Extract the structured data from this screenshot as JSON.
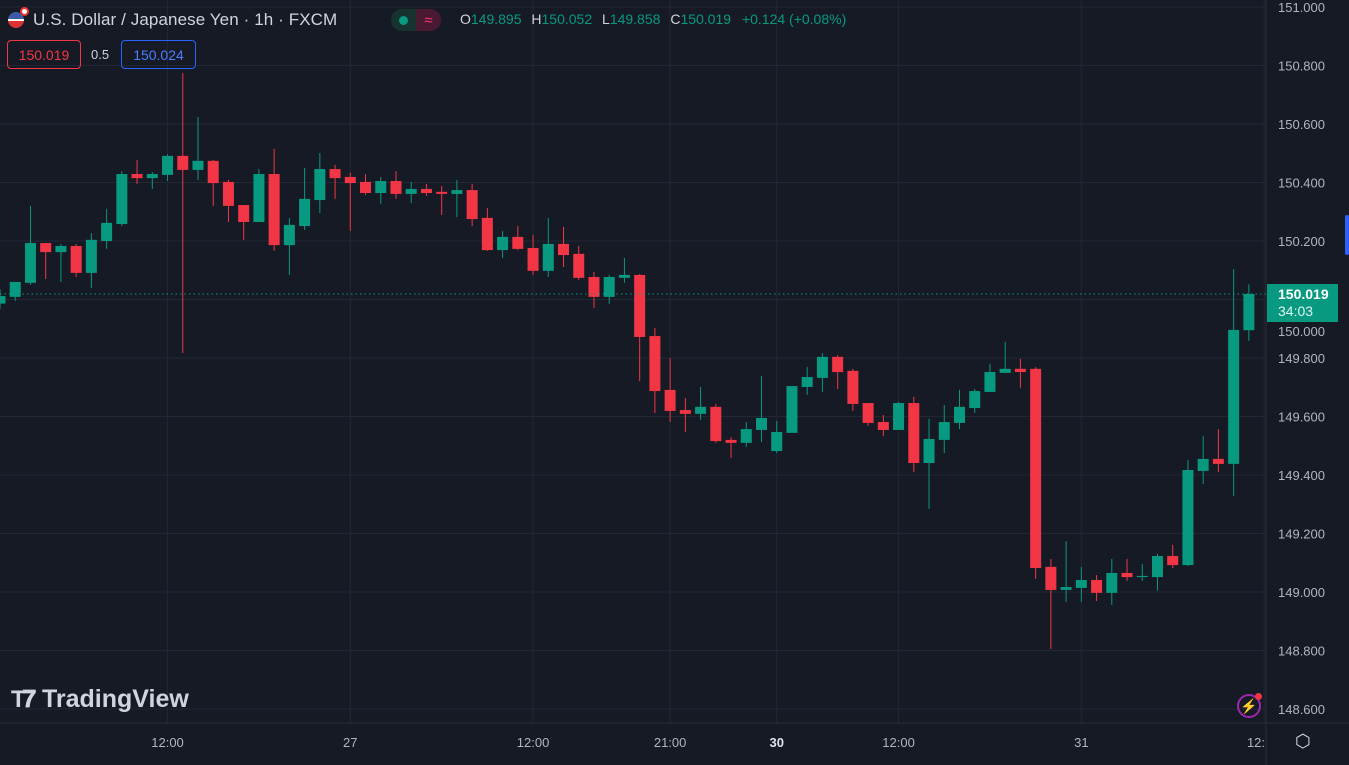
{
  "header": {
    "title": "U.S. Dollar / Japanese Yen · 1h · FXCM",
    "flag_icon": "us-jp-flag-icon",
    "status_icon": "market-open-dot-icon",
    "indicator_icon": "approx-wave-icon",
    "ohlc": {
      "o_label": "O",
      "o": "149.895",
      "h_label": "H",
      "h": "150.052",
      "l_label": "L",
      "l": "149.858",
      "c_label": "C",
      "c": "150.019",
      "change": "+0.124 (+0.08%)"
    }
  },
  "trade": {
    "sell": "150.019",
    "spread": "0.5",
    "buy": "150.024"
  },
  "current_price": {
    "price": "150.019",
    "countdown": "34:03"
  },
  "logo": "TradingView",
  "colors": {
    "up": "#089981",
    "down": "#f23645",
    "background": "#161a25",
    "grid": "#232734"
  },
  "chart_data": {
    "type": "candlestick",
    "symbol": "USDJPY",
    "interval": "1h",
    "ylim": [
      148.6,
      151.0
    ],
    "y_ticks": [
      "151.000",
      "150.800",
      "150.600",
      "150.400",
      "150.200",
      "150.000",
      "149.800",
      "149.600",
      "149.400",
      "149.200",
      "149.000",
      "148.800",
      "148.600"
    ],
    "x_ticks": [
      {
        "label": "12:00",
        "candle": 11,
        "bold": false
      },
      {
        "label": "27",
        "candle": 23,
        "bold": false
      },
      {
        "label": "12:00",
        "candle": 35,
        "bold": false
      },
      {
        "label": "21:00",
        "candle": 44,
        "bold": false
      },
      {
        "label": "30",
        "candle": 51,
        "bold": true
      },
      {
        "label": "12:00",
        "candle": 59,
        "bold": false
      },
      {
        "label": "31",
        "candle": 71,
        "bold": false
      },
      {
        "label": "12:",
        "candle": 83,
        "bold": false
      }
    ],
    "grid": true,
    "candles_ohlc": [
      [
        149.986,
        150.036,
        149.968,
        150.012
      ],
      [
        150.009,
        150.06,
        149.995,
        150.06
      ],
      [
        150.057,
        150.32,
        150.05,
        150.193
      ],
      [
        150.193,
        150.193,
        150.07,
        150.162
      ],
      [
        150.162,
        150.19,
        150.06,
        150.183
      ],
      [
        150.183,
        150.19,
        150.077,
        150.091
      ],
      [
        150.091,
        150.227,
        150.039,
        150.204
      ],
      [
        150.2,
        150.31,
        150.173,
        150.262
      ],
      [
        150.258,
        150.439,
        150.251,
        150.429
      ],
      [
        150.429,
        150.477,
        150.395,
        150.415
      ],
      [
        150.415,
        150.436,
        150.378,
        150.429
      ],
      [
        150.426,
        150.497,
        150.405,
        150.491
      ],
      [
        150.491,
        150.774,
        149.817,
        150.443
      ],
      [
        150.443,
        150.624,
        150.409,
        150.474
      ],
      [
        150.474,
        150.477,
        150.32,
        150.398
      ],
      [
        150.402,
        150.409,
        150.265,
        150.32
      ],
      [
        150.323,
        150.323,
        150.204,
        150.265
      ],
      [
        150.265,
        150.446,
        150.265,
        150.429
      ],
      [
        150.429,
        150.515,
        150.166,
        150.186
      ],
      [
        150.186,
        150.279,
        150.084,
        150.255
      ],
      [
        150.251,
        150.45,
        150.238,
        150.344
      ],
      [
        150.34,
        150.501,
        150.296,
        150.446
      ],
      [
        150.446,
        150.46,
        150.344,
        150.415
      ],
      [
        150.419,
        150.433,
        150.234,
        150.398
      ],
      [
        150.402,
        150.429,
        150.357,
        150.364
      ],
      [
        150.364,
        150.419,
        150.327,
        150.405
      ],
      [
        150.405,
        150.439,
        150.344,
        150.361
      ],
      [
        150.361,
        150.402,
        150.33,
        150.378
      ],
      [
        150.378,
        150.395,
        150.354,
        150.364
      ],
      [
        150.368,
        150.388,
        150.289,
        150.361
      ],
      [
        150.361,
        150.409,
        150.282,
        150.374
      ],
      [
        150.374,
        150.395,
        150.251,
        150.275
      ],
      [
        150.279,
        150.313,
        150.166,
        150.169
      ],
      [
        150.169,
        150.234,
        150.142,
        150.214
      ],
      [
        150.214,
        150.251,
        150.169,
        150.173
      ],
      [
        150.176,
        150.221,
        150.084,
        150.098
      ],
      [
        150.098,
        150.279,
        150.077,
        150.19
      ],
      [
        150.19,
        150.248,
        150.111,
        150.152
      ],
      [
        150.156,
        150.183,
        150.067,
        150.074
      ],
      [
        150.077,
        150.094,
        149.971,
        150.009
      ],
      [
        150.009,
        150.084,
        149.985,
        150.077
      ],
      [
        150.074,
        150.142,
        150.057,
        150.084
      ],
      [
        150.084,
        150.087,
        149.721,
        149.872
      ],
      [
        149.875,
        149.903,
        149.612,
        149.687
      ],
      [
        149.691,
        149.8,
        149.581,
        149.619
      ],
      [
        149.622,
        149.663,
        149.547,
        149.609
      ],
      [
        149.609,
        149.701,
        149.588,
        149.633
      ],
      [
        149.633,
        149.643,
        149.51,
        149.516
      ],
      [
        149.52,
        149.53,
        149.458,
        149.51
      ],
      [
        149.51,
        149.581,
        149.496,
        149.557
      ],
      [
        149.554,
        149.739,
        149.513,
        149.595
      ],
      [
        149.482,
        149.585,
        149.475,
        149.547
      ],
      [
        149.544,
        149.704,
        149.544,
        149.704
      ],
      [
        149.701,
        149.769,
        149.674,
        149.735
      ],
      [
        149.732,
        149.817,
        149.684,
        149.804
      ],
      [
        149.804,
        149.81,
        149.694,
        149.752
      ],
      [
        149.756,
        149.763,
        149.619,
        149.643
      ],
      [
        149.646,
        149.646,
        149.568,
        149.578
      ],
      [
        149.581,
        149.605,
        149.533,
        149.554
      ],
      [
        149.554,
        149.65,
        149.554,
        149.646
      ],
      [
        149.646,
        149.667,
        149.41,
        149.441
      ],
      [
        149.441,
        149.592,
        149.284,
        149.523
      ],
      [
        149.52,
        149.639,
        149.475,
        149.581
      ],
      [
        149.578,
        149.691,
        149.557,
        149.633
      ],
      [
        149.629,
        149.694,
        149.612,
        149.687
      ],
      [
        149.684,
        149.78,
        149.684,
        149.752
      ],
      [
        149.749,
        149.855,
        149.749,
        149.763
      ],
      [
        149.763,
        149.797,
        149.698,
        149.752
      ],
      [
        149.763,
        149.769,
        149.045,
        149.082
      ],
      [
        149.086,
        149.113,
        148.805,
        149.007
      ],
      [
        149.007,
        149.174,
        148.966,
        149.017
      ],
      [
        149.014,
        149.086,
        148.966,
        149.041
      ],
      [
        149.041,
        149.058,
        148.969,
        148.997
      ],
      [
        148.997,
        149.113,
        148.956,
        149.065
      ],
      [
        149.065,
        149.113,
        149.038,
        149.051
      ],
      [
        149.051,
        149.096,
        149.038,
        149.055
      ],
      [
        149.051,
        149.13,
        149.004,
        149.123
      ],
      [
        149.123,
        149.161,
        149.082,
        149.092
      ],
      [
        149.092,
        149.451,
        149.089,
        149.417
      ],
      [
        149.414,
        149.533,
        149.369,
        149.455
      ],
      [
        149.455,
        149.557,
        149.41,
        149.438
      ],
      [
        149.438,
        150.104,
        149.328,
        149.896
      ],
      [
        149.895,
        150.052,
        149.858,
        150.019
      ]
    ],
    "last_price_line": 150.019
  },
  "icons": {
    "alert": "lightning-alert-icon",
    "settings": "hexagon-settings-icon"
  }
}
